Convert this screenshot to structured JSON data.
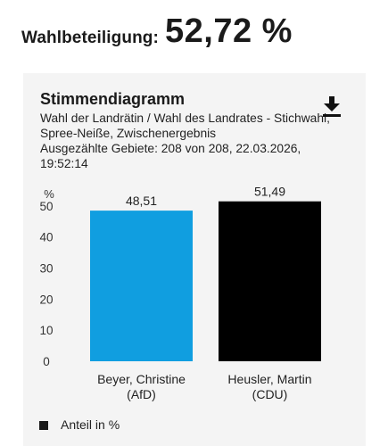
{
  "turnout": {
    "label": "Wahlbeteiligung:",
    "value": "52,72 %"
  },
  "card": {
    "title": "Stimmendiagramm",
    "subtitle": "Wahl der Landrätin / Wahl des Landrates - Stichwahl,\nSpree-Neiße, Zwischenergebnis\nAusgezählte Gebiete: 208 von 208, 22.03.2026,\n19:52:14",
    "download_icon": "download-icon"
  },
  "chart_data": {
    "type": "bar",
    "ylabel": "%",
    "ylim": [
      0,
      54
    ],
    "yticks": [
      "0",
      "10",
      "20",
      "30",
      "40",
      "50"
    ],
    "categories": [
      "Beyer, Christine\n(AfD)",
      "Heusler, Martin\n(CDU)"
    ],
    "values": [
      48.51,
      51.49
    ],
    "value_labels": [
      "48,51",
      "51,49"
    ],
    "colors": [
      "#109ee0",
      "#000000"
    ],
    "legend": [
      {
        "label": "Anteil in %",
        "color": "#333333"
      }
    ],
    "legend_position": "bottom-left",
    "grid": false
  }
}
